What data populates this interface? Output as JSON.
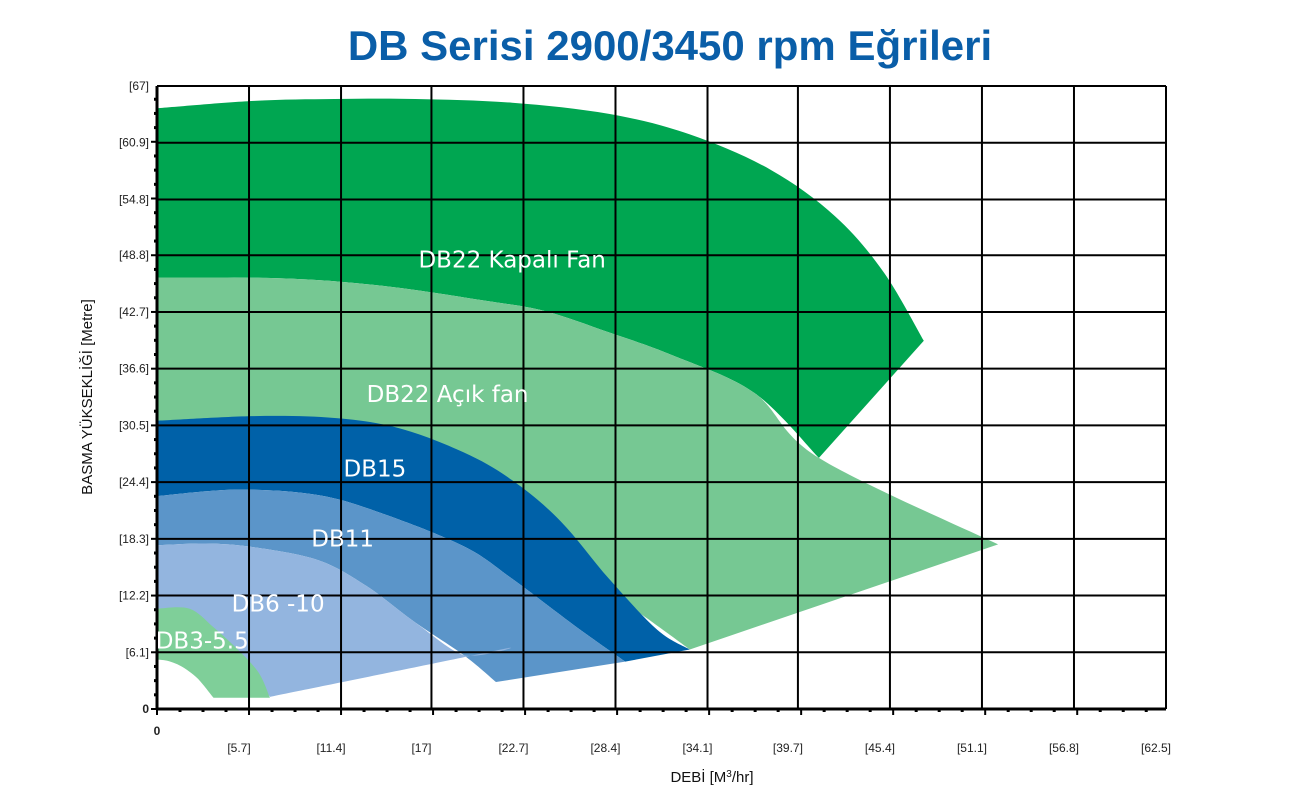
{
  "chart_data": {
    "type": "area",
    "title": "DB Serisi   2900/3450 rpm Eğrileri",
    "title_color": "#0a5ea8",
    "xlabel": "DEBİ [M",
    "xlabel_sup": "3",
    "xlabel_tail": "/hr]",
    "ylabel": "BASMA YÜKSEKLİĞİ  [Metre]",
    "xlim": [
      0,
      62.5
    ],
    "ylim": [
      0,
      67
    ],
    "x_ticks": [
      {
        "v": 5.7,
        "label": "[5.7]"
      },
      {
        "v": 11.4,
        "label": "[11.4]"
      },
      {
        "v": 17,
        "label": "[17]"
      },
      {
        "v": 22.7,
        "label": "[22.7]"
      },
      {
        "v": 28.4,
        "label": "[28.4]"
      },
      {
        "v": 34.1,
        "label": "[34.1]"
      },
      {
        "v": 39.7,
        "label": "[39.7]"
      },
      {
        "v": 45.4,
        "label": "[45.4]"
      },
      {
        "v": 51.1,
        "label": "[51.1]"
      },
      {
        "v": 56.8,
        "label": "[56.8]"
      },
      {
        "v": 62.5,
        "label": "[62.5]"
      }
    ],
    "x_origin_label": "0",
    "y_ticks": [
      {
        "v": 6.1,
        "label": "[6.1]"
      },
      {
        "v": 12.2,
        "label": "[12.2]"
      },
      {
        "v": 18.3,
        "label": "[18.3]"
      },
      {
        "v": 24.4,
        "label": "[24.4]"
      },
      {
        "v": 30.5,
        "label": "[30.5]"
      },
      {
        "v": 36.6,
        "label": "[36.6]"
      },
      {
        "v": 42.7,
        "label": "[42.7]"
      },
      {
        "v": 48.8,
        "label": "[48.8]"
      },
      {
        "v": 54.8,
        "label": "[54.8]"
      },
      {
        "v": 60.9,
        "label": "[60.9]"
      },
      {
        "v": 67,
        "label": "[67]"
      }
    ],
    "y_origin_label": "0",
    "grid": true,
    "series": [
      {
        "name": "DB22 Kapalı Fan",
        "color": "#00a651",
        "upper": [
          [
            0,
            64.6
          ],
          [
            6,
            65.4
          ],
          [
            11,
            65.6
          ],
          [
            16,
            65.6
          ],
          [
            22,
            65.2
          ],
          [
            28,
            64.0
          ],
          [
            33,
            61.8
          ],
          [
            38,
            58.0
          ],
          [
            42,
            53.0
          ],
          [
            45,
            47.0
          ],
          [
            47.5,
            39.6
          ]
        ],
        "lower": [
          [
            41,
            27.0
          ],
          [
            37,
            34.0
          ],
          [
            32,
            38.0
          ],
          [
            28,
            40.5
          ],
          [
            24,
            42.8
          ],
          [
            20,
            44.0
          ],
          [
            14,
            45.5
          ],
          [
            8,
            46.3
          ],
          [
            0,
            46.4
          ]
        ],
        "label_pos": [
          22,
          47.5
        ]
      },
      {
        "name": "DB22 Açık fan",
        "color": "#76c893",
        "upper": [
          [
            0,
            46.4
          ],
          [
            8,
            46.3
          ],
          [
            14,
            45.5
          ],
          [
            20,
            44.0
          ],
          [
            24,
            42.8
          ],
          [
            28,
            40.5
          ],
          [
            32,
            38.0
          ],
          [
            37,
            34.0
          ],
          [
            41,
            27.0
          ],
          [
            52.1,
            17.7
          ]
        ],
        "lower": [
          [
            33,
            6.4
          ],
          [
            30,
            10.2
          ],
          [
            27,
            13.8
          ],
          [
            23,
            17.5
          ],
          [
            19,
            20.2
          ],
          [
            15,
            22.5
          ],
          [
            10,
            24.2
          ],
          [
            0,
            24.4
          ]
        ],
        "label_pos": [
          18,
          33.0
        ]
      },
      {
        "name": "DB15",
        "color": "#0061a8",
        "upper": [
          [
            0,
            31.0
          ],
          [
            6,
            31.5
          ],
          [
            11,
            31.3
          ],
          [
            15,
            30.2
          ],
          [
            19,
            27.6
          ],
          [
            22,
            24.6
          ],
          [
            25,
            20.2
          ],
          [
            28,
            14.0
          ],
          [
            31,
            8.5
          ],
          [
            33,
            6.4
          ]
        ],
        "lower": [
          [
            29,
            5.1
          ],
          [
            26,
            8.8
          ],
          [
            22,
            14.0
          ],
          [
            19,
            17.5
          ],
          [
            14,
            21.0
          ],
          [
            10,
            23.0
          ],
          [
            5,
            23.6
          ],
          [
            0,
            22.9
          ]
        ],
        "label_pos": [
          13.5,
          25.0
        ]
      },
      {
        "name": "DB11",
        "color": "#5b95c9",
        "upper": [
          [
            0,
            22.9
          ],
          [
            5,
            23.6
          ],
          [
            10,
            23.0
          ],
          [
            14,
            21.0
          ],
          [
            19,
            17.5
          ],
          [
            22,
            14.0
          ],
          [
            26,
            8.8
          ],
          [
            29,
            5.1
          ]
        ],
        "lower": [
          [
            21,
            2.9
          ],
          [
            19,
            5.8
          ],
          [
            16,
            9.3
          ],
          [
            13,
            13.2
          ],
          [
            10,
            16.0
          ],
          [
            6,
            17.4
          ],
          [
            3,
            17.8
          ],
          [
            0,
            17.6
          ]
        ],
        "label_pos": [
          11.5,
          17.5
        ]
      },
      {
        "name": "DB6 -10",
        "color": "#93b5df",
        "upper": [
          [
            0,
            17.6
          ],
          [
            3,
            17.8
          ],
          [
            6,
            17.4
          ],
          [
            10,
            16.0
          ],
          [
            13,
            13.2
          ],
          [
            16,
            9.3
          ],
          [
            19,
            5.8
          ],
          [
            21.3,
            6.4
          ],
          [
            7,
            1.3
          ]
        ],
        "lower": [
          [
            6.5,
            2.5
          ],
          [
            5,
            5.0
          ],
          [
            3.5,
            7.5
          ],
          [
            2,
            9.3
          ],
          [
            0,
            9.8
          ]
        ],
        "label_pos": [
          7.5,
          10.5
        ]
      },
      {
        "name": "DB3-5.5",
        "color": "#7fcf99",
        "upper": [
          [
            0,
            10.8
          ],
          [
            2,
            10.8
          ],
          [
            3.5,
            8.8
          ],
          [
            5,
            6.4
          ],
          [
            6.3,
            3.9
          ],
          [
            7,
            1.2
          ]
        ],
        "lower": [
          [
            3.5,
            1.2
          ],
          [
            2.5,
            3.3
          ],
          [
            1.5,
            4.6
          ],
          [
            0.6,
            5.2
          ],
          [
            0,
            5.3
          ]
        ],
        "label_pos": [
          2.8,
          6.5
        ]
      }
    ]
  }
}
